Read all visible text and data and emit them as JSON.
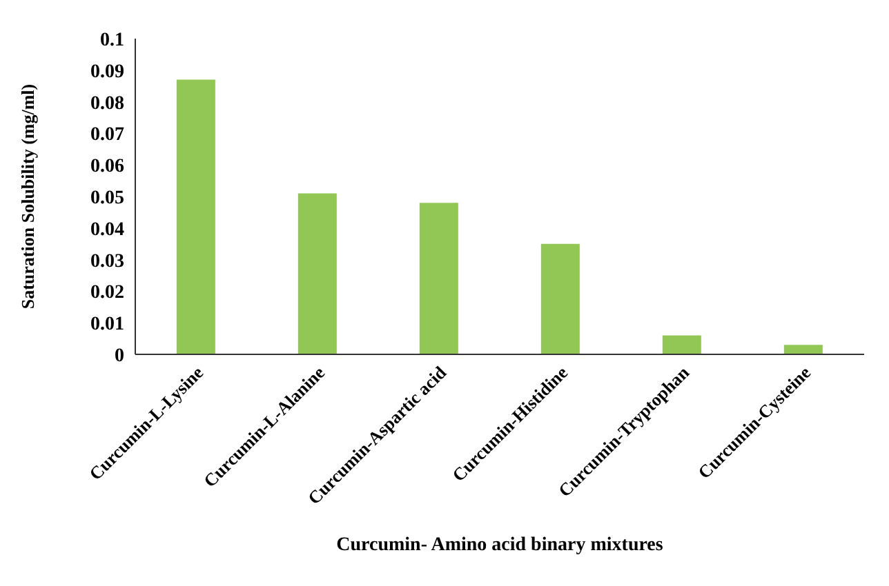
{
  "chart_data": {
    "type": "bar",
    "xlabel": "Curcumin- Amino acid binary mixtures",
    "ylabel": "Saturation Solubility (mg/ml)",
    "categories": [
      "Curcumin-L-Lysine",
      "Curcumin-L-Alanine",
      "Curcumin-Aspartic acid",
      "Curcumin-Histidine",
      "Curcumin-Tryptophan",
      "Curcumin-Cysteine"
    ],
    "values": [
      0.087,
      0.051,
      0.048,
      0.035,
      0.006,
      0.003
    ],
    "color": "#92c755",
    "ylim": [
      0,
      0.1
    ],
    "yticks": [
      0,
      0.01,
      0.02,
      0.03,
      0.04,
      0.05,
      0.06,
      0.07,
      0.08,
      0.09,
      0.1
    ],
    "grid": false
  }
}
